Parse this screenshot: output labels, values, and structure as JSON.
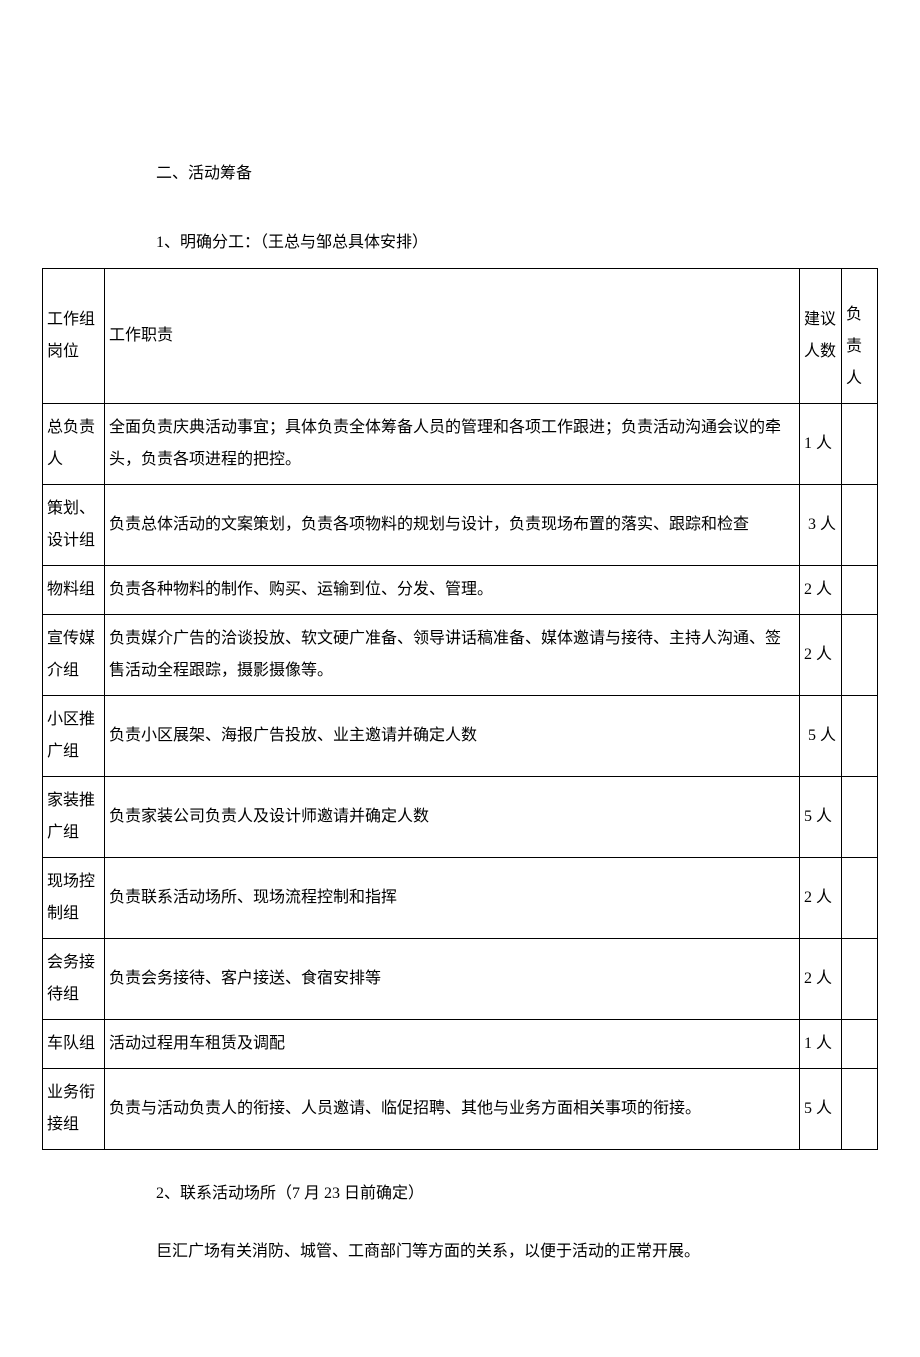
{
  "section_heading": "二、活动筹备",
  "subsection1": "1、明确分工：（王总与邹总具体安排）",
  "subsection2": "2、联系活动场所（7 月 23 日前确定）",
  "paragraph": "巨汇广场有关消防、城管、工商部门等方面的关系，以便于活动的正常开展。",
  "table": {
    "columns": {
      "role": "工作组岗位",
      "duty": "工作职责",
      "count": "建议人数",
      "lead": "负责人"
    },
    "rows": [
      {
        "role": "总负责人",
        "duty": "全面负责庆典活动事宜；具体负责全体筹备人员的管理和各项工作跟进；负责活动沟通会议的牵头，负责各项进程的把控。",
        "count": "1 人",
        "lead": ""
      },
      {
        "role": "策划、设计组",
        "duty": "负责总体活动的文案策划，负责各项物料的规划与设计，负责现场布置的落实、跟踪和检查",
        "count": " 3 人",
        "lead": ""
      },
      {
        "role": "物料组",
        "duty": "负责各种物料的制作、购买、运输到位、分发、管理。",
        "count": "2 人",
        "lead": ""
      },
      {
        "role": "宣传媒介组",
        "duty": "负责媒介广告的洽谈投放、软文硬广准备、领导讲话稿准备、媒体邀请与接待、主持人沟通、签售活动全程跟踪，摄影摄像等。",
        "count": "2 人",
        "lead": ""
      },
      {
        "role": "小区推广组",
        "duty": "负责小区展架、海报广告投放、业主邀请并确定人数",
        "count": " 5 人",
        "lead": ""
      },
      {
        "role": "家装推广组",
        "duty": "负责家装公司负责人及设计师邀请并确定人数",
        "count": "5 人",
        "lead": ""
      },
      {
        "role": "现场控制组",
        "duty": "负责联系活动场所、现场流程控制和指挥",
        "count": "2 人",
        "lead": ""
      },
      {
        "role": "会务接待组",
        "duty": "负责会务接待、客户接送、食宿安排等",
        "count": "2 人",
        "lead": ""
      },
      {
        "role": "车队组",
        "duty": "活动过程用车租赁及调配",
        "count": "1 人",
        "lead": ""
      },
      {
        "role": "业务衔接组",
        "duty": "负责与活动负责人的衔接、人员邀请、临促招聘、其他与业务方面相关事项的衔接。",
        "count": "5 人",
        "lead": ""
      }
    ]
  }
}
